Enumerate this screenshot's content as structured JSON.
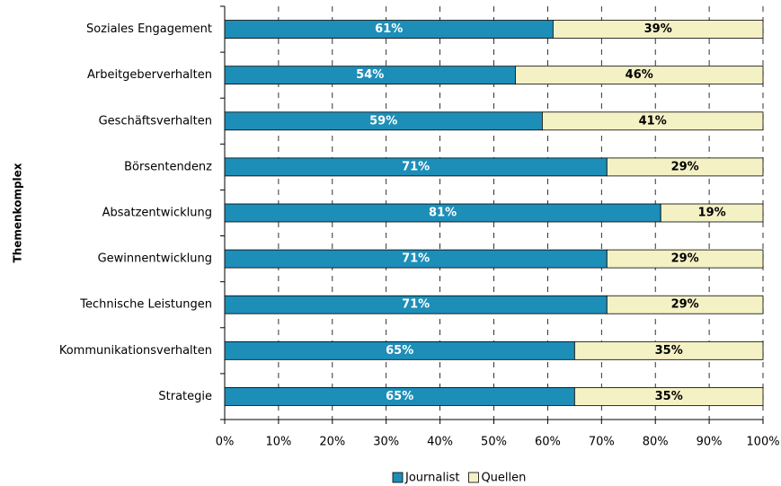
{
  "chart_data": {
    "type": "stacked-barh",
    "ylabel": "Themenkomplex",
    "categories": [
      "Soziales Engagement",
      "Arbeitgeberverhalten",
      "Geschäftsverhalten",
      "Börsentendenz",
      "Absatzentwicklung",
      "Gewinnentwicklung",
      "Technische Leistungen",
      "Kommunikationsverhalten",
      "Strategie"
    ],
    "series": [
      {
        "name": "Journalist",
        "color": "#1d8eb8",
        "values": [
          61,
          54,
          59,
          71,
          81,
          71,
          71,
          65,
          65
        ],
        "value_labels": [
          "61%",
          "54%",
          "59%",
          "71%",
          "81%",
          "71%",
          "71%",
          "65%",
          "65%"
        ]
      },
      {
        "name": "Quellen",
        "color": "#f4f1c5",
        "values": [
          39,
          46,
          41,
          29,
          19,
          29,
          29,
          35,
          35
        ],
        "value_labels": [
          "39%",
          "46%",
          "41%",
          "29%",
          "19%",
          "29%",
          "29%",
          "35%",
          "35%"
        ]
      }
    ],
    "xlim": [
      0,
      100
    ],
    "xticks": [
      {
        "value": 0,
        "label": "0%"
      },
      {
        "value": 10,
        "label": "10%"
      },
      {
        "value": 20,
        "label": "20%"
      },
      {
        "value": 30,
        "label": "30%"
      },
      {
        "value": 40,
        "label": "40%"
      },
      {
        "value": 50,
        "label": "50%"
      },
      {
        "value": 60,
        "label": "60%"
      },
      {
        "value": 70,
        "label": "70%"
      },
      {
        "value": 80,
        "label": "80%"
      },
      {
        "value": 90,
        "label": "90%"
      },
      {
        "value": 100,
        "label": "100%"
      }
    ],
    "grid": true,
    "legend": "bottom"
  }
}
